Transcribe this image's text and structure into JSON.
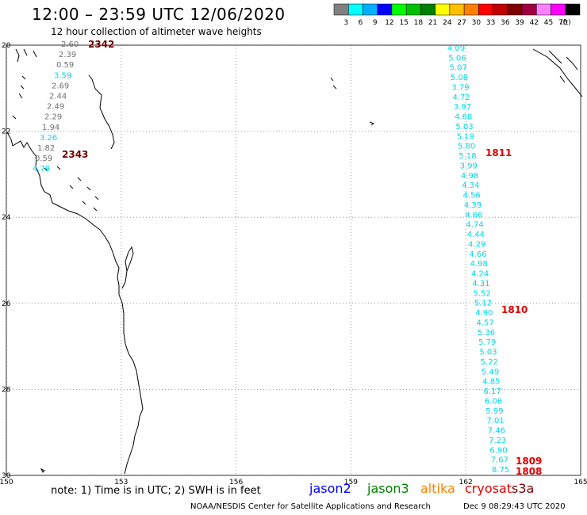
{
  "header": {
    "title": "12:00 – 23:59 UTC 12/06/2020",
    "subtitle": "12 hour collection of altimeter wave heights"
  },
  "color_scale": {
    "labels": [
      "3",
      "6",
      "9",
      "12",
      "15",
      "18",
      "21",
      "24",
      "27",
      "30",
      "33",
      "36",
      "39",
      "42",
      "45",
      "70",
      "(ft)"
    ],
    "colors": [
      "#808080",
      "#00ffff",
      "#00b0ff",
      "#0000ff",
      "#00ff00",
      "#00c000",
      "#008000",
      "#ffff00",
      "#ffc000",
      "#ff8000",
      "#ff0000",
      "#c00000",
      "#800000",
      "#a00040",
      "#ff80ff",
      "#ff00ff",
      "#000000"
    ]
  },
  "map": {
    "lat_labels": [
      "20",
      "22",
      "24",
      "26",
      "28",
      "30"
    ],
    "lon_labels": [
      "150",
      "153",
      "156",
      "159",
      "162",
      "165"
    ],
    "colors": {
      "coast": "#000000",
      "grid": "#808080",
      "cyan": "#00d8e8",
      "gray": "#707070",
      "time_red": "#e00000",
      "time_dark": "#700000"
    }
  },
  "tracks": {
    "left": [
      {
        "v": "2.60",
        "c": "gray"
      },
      {
        "v": "2.39",
        "c": "gray"
      },
      {
        "v": "0.59",
        "c": "gray"
      },
      {
        "v": "3.59",
        "c": "cyan"
      },
      {
        "v": "2.69",
        "c": "gray"
      },
      {
        "v": "2.44",
        "c": "gray"
      },
      {
        "v": "2.49",
        "c": "gray"
      },
      {
        "v": "2.29",
        "c": "gray"
      },
      {
        "v": "1.94",
        "c": "gray"
      },
      {
        "v": "3.26",
        "c": "cyan"
      },
      {
        "v": "1.82",
        "c": "gray"
      },
      {
        "v": "0.59",
        "c": "gray"
      },
      {
        "v": "4.79",
        "c": "cyan"
      }
    ],
    "right": [
      "4.09",
      "5.06",
      "5.07",
      "5.08",
      "3.79",
      "4.72",
      "3.97",
      "4.68",
      "5.03",
      "5.19",
      "5.80",
      "5.18",
      "3.99",
      "4.98",
      "4.34",
      "4.56",
      "4.39",
      "4.66",
      "4.74",
      "4.44",
      "4.29",
      "4.66",
      "4.98",
      "4.24",
      "4.31",
      "5.52",
      "5.12",
      "4.90",
      "4.57",
      "5.36",
      "5.79",
      "5.03",
      "5.22",
      "5.49",
      "4.85",
      "6.17",
      "6.06",
      "5.99",
      "7.01",
      "7.46",
      "7.23",
      "6.90",
      "7.67",
      "8.75"
    ],
    "time_labels": [
      {
        "t": "2342",
        "c": "time_dark"
      },
      {
        "t": "2343",
        "c": "time_dark"
      },
      {
        "t": "1811",
        "c": "time_red"
      },
      {
        "t": "1810",
        "c": "time_red"
      },
      {
        "t": "1809",
        "c": "time_red"
      },
      {
        "t": "1808",
        "c": "time_red"
      }
    ]
  },
  "legend": {
    "note": "note: 1) Time is in UTC; 2) SWH is in feet",
    "satellites": [
      {
        "name": "jason2",
        "color": "#0000ff"
      },
      {
        "name": "jason3",
        "color": "#008000"
      },
      {
        "name": "altika",
        "color": "#ff8000"
      },
      {
        "name": "cryosat",
        "color": "#e00000"
      },
      {
        "name": "s3a",
        "color": "#800000"
      }
    ]
  },
  "credits": {
    "org": "NOAA/NESDIS Center for Satellite Applications and Research",
    "date": "Dec  9 08:29:43 UTC 2020"
  }
}
